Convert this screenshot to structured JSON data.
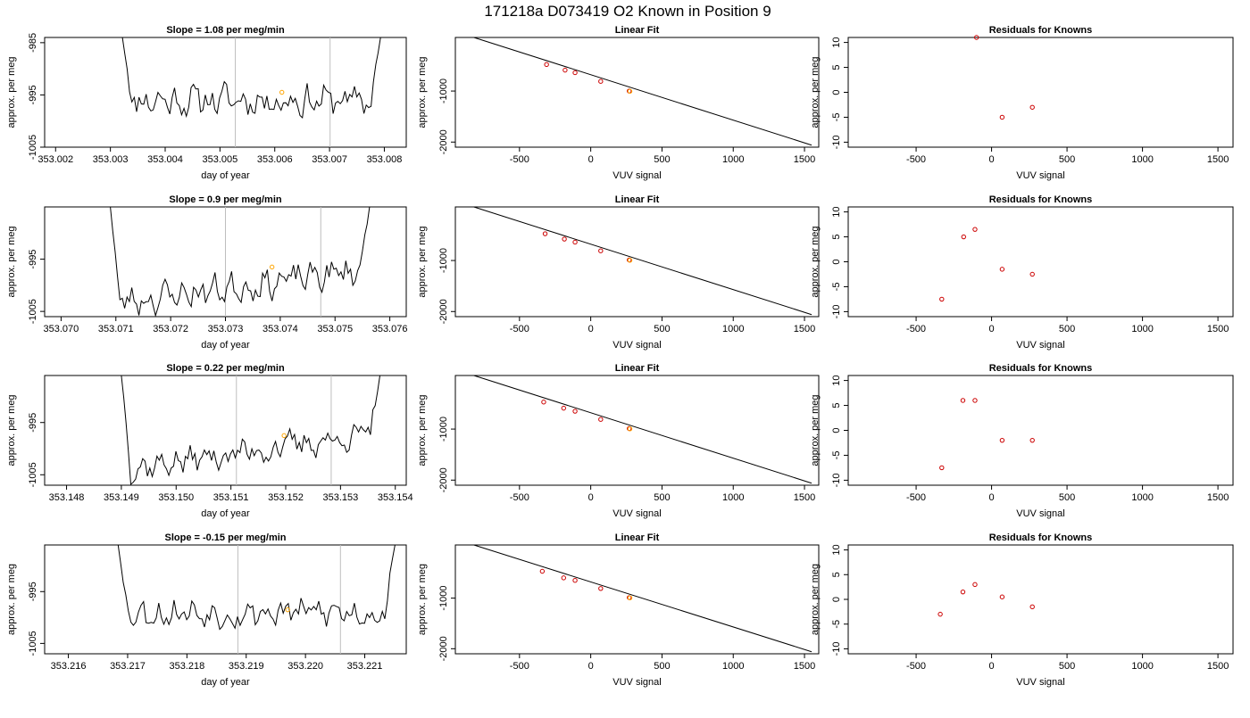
{
  "figure": {
    "title": "171218a      D073419   O2 Known in Position  9"
  },
  "colors": {
    "line": "#000000",
    "known_marker": "#cc0000",
    "sample_marker": "#ffa500",
    "vline": "#bebebe"
  },
  "chart_data": [
    {
      "type": "line",
      "title": "Slope =  1.08  per meg/min",
      "xlabel": "day of year",
      "ylabel": "approx. per meg",
      "xlim": [
        353.0018,
        353.0084
      ],
      "ylim": [
        -1005,
        -984
      ],
      "xticks": [
        353.002,
        353.003,
        353.004,
        353.005,
        353.006,
        353.007,
        353.008
      ],
      "xtick_labels": [
        "353.002",
        "353.003",
        "353.004",
        "353.005",
        "353.006",
        "353.007",
        "353.008"
      ],
      "yticks": [
        -1005,
        -995,
        -985
      ],
      "ytick_labels": [
        "-1005",
        "-995",
        "-985"
      ],
      "vlines": [
        353.00528,
        353.00701
      ],
      "trace": {
        "x_start": 353.00322,
        "x_end": 353.00793,
        "n": 110,
        "baseline": -996.0,
        "slope": 0.0,
        "amp": 2.3,
        "seed": 11,
        "start_y": -984,
        "end_y": -984,
        "tail_points": 4
      },
      "marker": {
        "x": 353.00613,
        "y": -994.5
      }
    },
    {
      "type": "scatter",
      "title": "Linear Fit",
      "xlabel": "VUV signal",
      "ylabel": "approx. per meg",
      "xlim": [
        -950,
        1600
      ],
      "ylim": [
        -2100,
        50
      ],
      "xticks": [
        -500,
        0,
        500,
        1000,
        1500
      ],
      "xtick_labels": [
        "-500",
        "0",
        "500",
        "1000",
        "1500"
      ],
      "yticks": [
        -1000,
        -2000
      ],
      "ytick_labels": [
        "-1000",
        "-2000"
      ],
      "fit_line": {
        "x": [
          -820,
          1550
        ],
        "y": [
          150,
          -2060
        ]
      },
      "knowns": {
        "x": [
          -310,
          -180,
          -110,
          70,
          270
        ],
        "y": [
          -480,
          -590,
          -640,
          -810,
          -1000
        ]
      },
      "sample": {
        "x": 275,
        "y": -1005
      }
    },
    {
      "type": "scatter",
      "title": "Residuals for Knowns",
      "xlabel": "VUV signal",
      "ylabel": "approx. per meg",
      "xlim": [
        -950,
        1600
      ],
      "ylim": [
        -11,
        11
      ],
      "xticks": [
        -500,
        0,
        500,
        1000,
        1500
      ],
      "xtick_labels": [
        "-500",
        "0",
        "500",
        "1000",
        "1500"
      ],
      "yticks": [
        -10,
        -5,
        0,
        5,
        10
      ],
      "ytick_labels": [
        "-10",
        "-5",
        "0",
        "5",
        "10"
      ],
      "points": {
        "x": [
          -100,
          70,
          270
        ],
        "y": [
          11,
          -5,
          -3
        ]
      }
    },
    {
      "type": "line",
      "title": "Slope =  0.9  per meg/min",
      "xlabel": "day of year",
      "ylabel": "approx. per meg",
      "xlim": [
        353.0697,
        353.0763
      ],
      "ylim": [
        -1006,
        -985
      ],
      "xticks": [
        353.07,
        353.071,
        353.072,
        353.073,
        353.074,
        353.075,
        353.076
      ],
      "xtick_labels": [
        "353.070",
        "353.071",
        "353.072",
        "353.073",
        "353.074",
        "353.075",
        "353.076"
      ],
      "yticks": [
        -1005,
        -995
      ],
      "ytick_labels": [
        "-1005",
        "-995"
      ],
      "vlines": [
        353.073,
        353.07474
      ],
      "trace": {
        "x_start": 353.0709,
        "x_end": 353.07563,
        "n": 110,
        "baseline": -1000.2,
        "slope": 6.5,
        "amp": 2.2,
        "seed": 23,
        "start_y": -985,
        "end_y": -985,
        "tail_points": 4
      },
      "marker": {
        "x": 353.07385,
        "y": -996.5
      }
    },
    {
      "type": "scatter",
      "title": "Linear Fit",
      "xlabel": "VUV signal",
      "ylabel": "approx. per meg",
      "xlim": [
        -950,
        1600
      ],
      "ylim": [
        -2100,
        50
      ],
      "xticks": [
        -500,
        0,
        500,
        1000,
        1500
      ],
      "xtick_labels": [
        "-500",
        "0",
        "500",
        "1000",
        "1500"
      ],
      "yticks": [
        -1000,
        -2000
      ],
      "ytick_labels": [
        "-1000",
        "-2000"
      ],
      "fit_line": {
        "x": [
          -820,
          1550
        ],
        "y": [
          150,
          -2060
        ]
      },
      "knowns": {
        "x": [
          -320,
          -185,
          -110,
          70,
          270
        ],
        "y": [
          -475,
          -580,
          -640,
          -810,
          -990
        ]
      },
      "sample": {
        "x": 275,
        "y": -995
      }
    },
    {
      "type": "scatter",
      "title": "Residuals for Knowns",
      "xlabel": "VUV signal",
      "ylabel": "approx. per meg",
      "xlim": [
        -950,
        1600
      ],
      "ylim": [
        -11,
        11
      ],
      "xticks": [
        -500,
        0,
        500,
        1000,
        1500
      ],
      "xtick_labels": [
        "-500",
        "0",
        "500",
        "1000",
        "1500"
      ],
      "yticks": [
        -10,
        -5,
        0,
        5,
        10
      ],
      "ytick_labels": [
        "-10",
        "-5",
        "0",
        "5",
        "10"
      ],
      "points": {
        "x": [
          -330,
          -185,
          -110,
          70,
          270
        ],
        "y": [
          -7.5,
          5,
          6.5,
          -1.5,
          -2.5
        ]
      }
    },
    {
      "type": "line",
      "title": "Slope =  0.22  per meg/min",
      "xlabel": "day of year",
      "ylabel": "approx. per meg",
      "xlim": [
        353.1476,
        353.1542
      ],
      "ylim": [
        -1007,
        -986
      ],
      "xticks": [
        353.148,
        353.149,
        353.15,
        353.151,
        353.152,
        353.153,
        353.154
      ],
      "xtick_labels": [
        "353.148",
        "353.149",
        "353.150",
        "353.151",
        "353.152",
        "353.153",
        "353.154"
      ],
      "yticks": [
        -1005,
        -995
      ],
      "ytick_labels": [
        "-1005",
        "-995"
      ],
      "vlines": [
        353.1511,
        353.15283
      ],
      "trace": {
        "x_start": 353.149,
        "x_end": 353.15372,
        "n": 110,
        "baseline": -1000.5,
        "slope": 7.0,
        "amp": 2.0,
        "seed": 37,
        "start_y": -986,
        "end_y": -986,
        "tail_points": 4
      },
      "marker": {
        "x": 353.15197,
        "y": -997.5
      }
    },
    {
      "type": "scatter",
      "title": "Linear Fit",
      "xlabel": "VUV signal",
      "ylabel": "approx. per meg",
      "xlim": [
        -950,
        1600
      ],
      "ylim": [
        -2100,
        50
      ],
      "xticks": [
        -500,
        0,
        500,
        1000,
        1500
      ],
      "xtick_labels": [
        "-500",
        "0",
        "500",
        "1000",
        "1500"
      ],
      "yticks": [
        -1000,
        -2000
      ],
      "ytick_labels": [
        "-1000",
        "-2000"
      ],
      "fit_line": {
        "x": [
          -820,
          1550
        ],
        "y": [
          150,
          -2060
        ]
      },
      "knowns": {
        "x": [
          -330,
          -190,
          -110,
          70,
          270
        ],
        "y": [
          -470,
          -590,
          -650,
          -810,
          -990
        ]
      },
      "sample": {
        "x": 275,
        "y": -995
      }
    },
    {
      "type": "scatter",
      "title": "Residuals for Knowns",
      "xlabel": "VUV signal",
      "ylabel": "approx. per meg",
      "xlim": [
        -950,
        1600
      ],
      "ylim": [
        -11,
        11
      ],
      "xticks": [
        -500,
        0,
        500,
        1000,
        1500
      ],
      "xtick_labels": [
        "-500",
        "0",
        "500",
        "1000",
        "1500"
      ],
      "yticks": [
        -10,
        -5,
        0,
        5,
        10
      ],
      "ytick_labels": [
        "-10",
        "-5",
        "0",
        "5",
        "10"
      ],
      "points": {
        "x": [
          -330,
          -190,
          -110,
          70,
          270
        ],
        "y": [
          -7.5,
          6,
          6,
          -2,
          -2
        ]
      }
    },
    {
      "type": "line",
      "title": "Slope =  -0.15  per meg/min",
      "xlabel": "day of year",
      "ylabel": "approx. per meg",
      "xlim": [
        353.2156,
        353.2217
      ],
      "ylim": [
        -1007,
        -986
      ],
      "xticks": [
        353.216,
        353.217,
        353.218,
        353.219,
        353.22,
        353.221
      ],
      "xtick_labels": [
        "353.216",
        "353.217",
        "353.218",
        "353.219",
        "353.220",
        "353.221"
      ],
      "yticks": [
        -1005,
        -995
      ],
      "ytick_labels": [
        "-1005",
        "-995"
      ],
      "vlines": [
        353.21886,
        353.22059
      ],
      "trace": {
        "x_start": 353.21684,
        "x_end": 353.22151,
        "n": 110,
        "baseline": -999.0,
        "slope": 0.0,
        "amp": 2.2,
        "seed": 53,
        "start_y": -986,
        "end_y": -986,
        "tail_points": 4
      },
      "marker": {
        "x": 353.2197,
        "y": -998.5
      }
    },
    {
      "type": "scatter",
      "title": "Linear Fit",
      "xlabel": "VUV signal",
      "ylabel": "approx. per meg",
      "xlim": [
        -950,
        1600
      ],
      "ylim": [
        -2100,
        50
      ],
      "xticks": [
        -500,
        0,
        500,
        1000,
        1500
      ],
      "xtick_labels": [
        "-500",
        "0",
        "500",
        "1000",
        "1500"
      ],
      "yticks": [
        -1000,
        -2000
      ],
      "ytick_labels": [
        "-1000",
        "-2000"
      ],
      "fit_line": {
        "x": [
          -820,
          1550
        ],
        "y": [
          150,
          -2060
        ]
      },
      "knowns": {
        "x": [
          -340,
          -190,
          -110,
          70,
          270
        ],
        "y": [
          -470,
          -600,
          -650,
          -810,
          -990
        ]
      },
      "sample": {
        "x": 275,
        "y": -995
      }
    },
    {
      "type": "scatter",
      "title": "Residuals for Knowns",
      "xlabel": "VUV signal",
      "ylabel": "approx. per meg",
      "xlim": [
        -950,
        1600
      ],
      "ylim": [
        -11,
        11
      ],
      "xticks": [
        -500,
        0,
        500,
        1000,
        1500
      ],
      "xtick_labels": [
        "-500",
        "0",
        "500",
        "1000",
        "1500"
      ],
      "yticks": [
        -10,
        -5,
        0,
        5,
        10
      ],
      "ytick_labels": [
        "-10",
        "-5",
        "0",
        "5",
        "10"
      ],
      "points": {
        "x": [
          -340,
          -190,
          -110,
          70,
          270
        ],
        "y": [
          -3,
          1.5,
          3,
          0.5,
          -1.5
        ]
      }
    }
  ]
}
